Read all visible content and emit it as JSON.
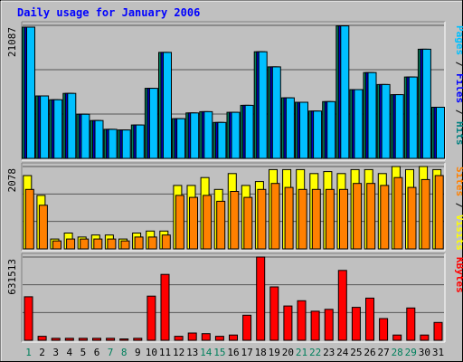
{
  "chart_data": {
    "type": "bar",
    "title": "Daily usage for January 2006",
    "categories": [
      "1",
      "2",
      "3",
      "4",
      "5",
      "6",
      "7",
      "8",
      "9",
      "10",
      "11",
      "12",
      "13",
      "14",
      "15",
      "16",
      "17",
      "18",
      "19",
      "20",
      "21",
      "22",
      "23",
      "24",
      "25",
      "26",
      "27",
      "28",
      "29",
      "30",
      "31"
    ],
    "weekend_days": [
      "1",
      "7",
      "8",
      "14",
      "15",
      "21",
      "22",
      "28",
      "29"
    ],
    "panels": [
      {
        "id": "hits-panel",
        "max_label": "21087",
        "ylim": [
          0,
          21087
        ],
        "legend": [
          "Pages",
          "Files",
          "Hits"
        ],
        "legend_colors": [
          "#00c0ff",
          "#0000ff",
          "#008080"
        ],
        "series": [
          {
            "name": "Hits",
            "color": "#00805c",
            "values": [
              20800,
              9900,
              9300,
              10300,
              7000,
              6000,
              4600,
              4500,
              5300,
              11100,
              16800,
              6300,
              7200,
              7400,
              5700,
              7300,
              8400,
              16900,
              14500,
              9600,
              8900,
              7500,
              9000,
              21000,
              10900,
              13600,
              11700,
              10100,
              12900,
              17300,
              8100
            ]
          },
          {
            "name": "Files",
            "color": "#0000c0",
            "values": [
              20800,
              9900,
              9300,
              10300,
              7000,
              6000,
              4600,
              4500,
              5300,
              11100,
              16800,
              6300,
              7200,
              7400,
              5700,
              7300,
              8400,
              16900,
              14500,
              9600,
              8900,
              7500,
              9000,
              21000,
              10900,
              13600,
              11700,
              10100,
              12900,
              17300,
              8100
            ]
          },
          {
            "name": "Pages",
            "color": "#00c0ff",
            "values": [
              20800,
              9900,
              9300,
              10300,
              7000,
              6000,
              4600,
              4500,
              5300,
              11100,
              16800,
              6300,
              7200,
              7400,
              5700,
              7300,
              8400,
              16900,
              14500,
              9600,
              8900,
              7500,
              9000,
              21000,
              10900,
              13600,
              11700,
              10100,
              12900,
              17300,
              8100
            ]
          }
        ]
      },
      {
        "id": "visits-panel",
        "max_label": "2078",
        "ylim": [
          0,
          2078
        ],
        "legend": [
          "Sites",
          "Visits"
        ],
        "legend_colors": [
          "#ff8000",
          "#ffff00"
        ],
        "series": [
          {
            "name": "Visits",
            "color": "#ffff00",
            "values": [
              1850,
              1350,
              250,
              400,
              300,
              350,
              350,
              250,
              400,
              450,
              450,
              1600,
              1600,
              1800,
              1500,
              1900,
              1600,
              1700,
              2000,
              2000,
              2000,
              1900,
              1950,
              1900,
              2000,
              2000,
              1900,
              2078,
              2000,
              2078,
              2000
            ]
          },
          {
            "name": "Sites",
            "color": "#ff8000",
            "values": [
              1500,
              1100,
              200,
              250,
              250,
              250,
              250,
              200,
              300,
              300,
              350,
              1350,
              1300,
              1350,
              1200,
              1450,
              1300,
              1500,
              1650,
              1550,
              1500,
              1500,
              1500,
              1500,
              1650,
              1650,
              1600,
              1800,
              1550,
              1750,
              1850
            ]
          }
        ]
      },
      {
        "id": "kbytes-panel",
        "max_label": "631513",
        "ylim": [
          0,
          631513
        ],
        "legend": [
          "KBytes"
        ],
        "legend_colors": [
          "#ff0000"
        ],
        "series": [
          {
            "name": "KBytes",
            "color": "#ff0000",
            "values": [
              330000,
              30000,
              15000,
              15000,
              15000,
              15000,
              15000,
              10000,
              15000,
              335000,
              500000,
              30000,
              55000,
              50000,
              30000,
              40000,
              190000,
              631513,
              405000,
              260000,
              300000,
              220000,
              235000,
              530000,
              250000,
              320000,
              165000,
              40000,
              245000,
              40000,
              135000
            ]
          }
        ]
      }
    ]
  }
}
